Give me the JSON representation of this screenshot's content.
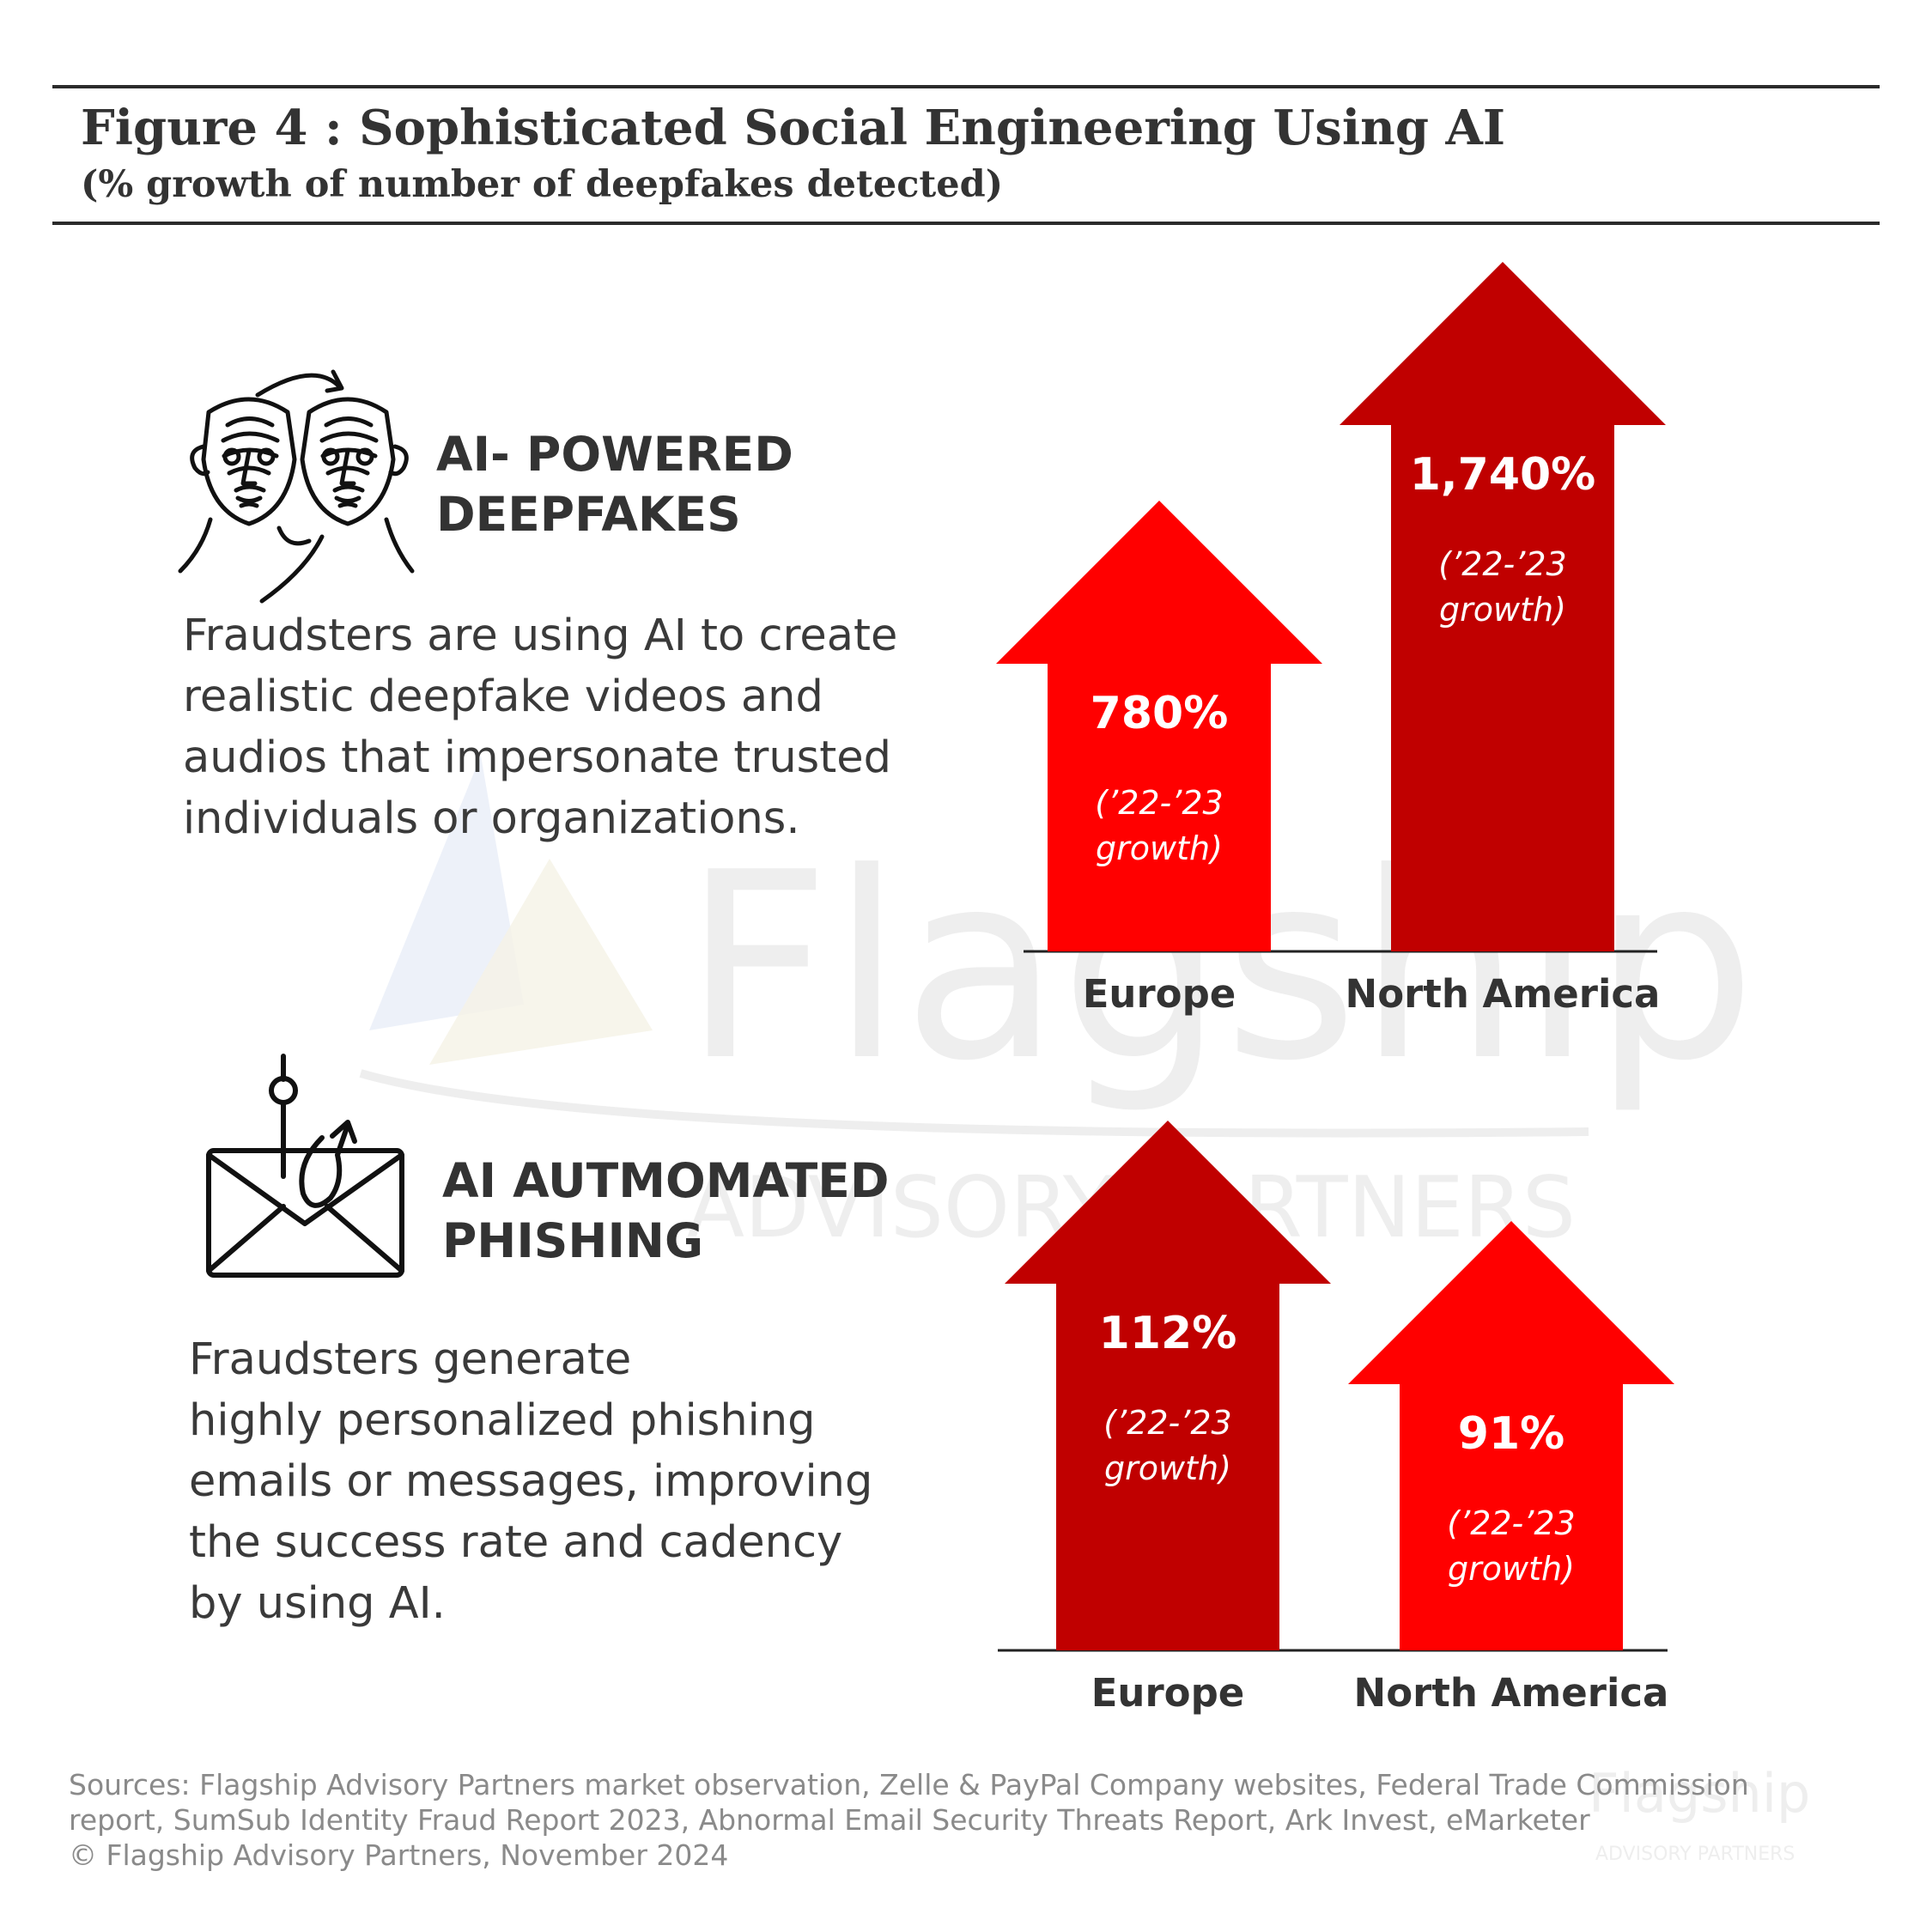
{
  "figure": {
    "title": "Figure 4 : Sophisticated Social Engineering Using AI",
    "subtitle": "(% growth of number of deepfakes detected)"
  },
  "sections": [
    {
      "icon": "deepfake-faces-icon",
      "heading_line1": "AI- POWERED",
      "heading_line2": "DEEPFAKES",
      "body_lines": [
        "Fraudsters are using AI to create",
        "realistic deepfake videos and",
        "audios that impersonate trusted",
        "individuals or organizations."
      ]
    },
    {
      "icon": "phishing-email-icon",
      "heading_line1": "AI AUTMOMATED",
      "heading_line2": "PHISHING",
      "body_lines": [
        "Fraudsters generate",
        "highly personalized phishing",
        "emails or messages, improving",
        "the success rate and cadency",
        "by using AI."
      ]
    }
  ],
  "chart_data": [
    {
      "type": "bar",
      "title": "AI- POWERED DEEPFAKES",
      "categories": [
        "Europe",
        "North America"
      ],
      "values": [
        780,
        1740
      ],
      "unit": "%",
      "value_labels": [
        "780%",
        "1,740%"
      ],
      "sublabel_line1": "(’22-’23",
      "sublabel_line2": "growth)",
      "colors": [
        "#ff0000",
        "#c00000"
      ]
    },
    {
      "type": "bar",
      "title": "AI AUTMOMATED PHISHING",
      "categories": [
        "Europe",
        "North America"
      ],
      "values": [
        112,
        91
      ],
      "unit": "%",
      "value_labels": [
        "112%",
        "91%"
      ],
      "sublabel_line1": "(’22-’23",
      "sublabel_line2": "growth)",
      "colors": [
        "#c00000",
        "#ff0000"
      ]
    }
  ],
  "watermark": {
    "brand": "Flagship",
    "tagline": "ADVISORY PARTNERS"
  },
  "sources_lines": [
    "Sources: Flagship Advisory Partners market observation, Zelle & PayPal Company websites, Federal Trade Commission",
    "report, SumSub Identity Fraud Report 2023, Abnormal Email Security Threats Report, Ark Invest, eMarketer",
    "© Flagship Advisory Partners, November 2024"
  ]
}
